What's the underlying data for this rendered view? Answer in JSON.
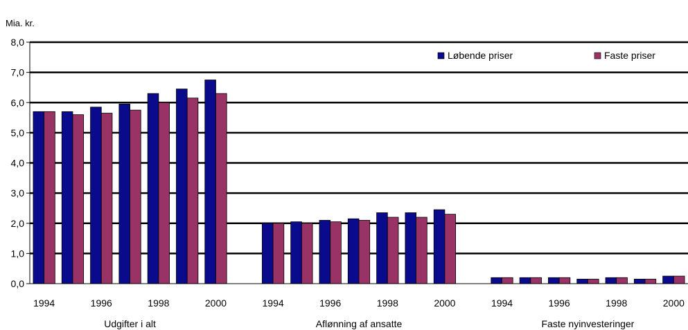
{
  "chart_data": {
    "type": "bar",
    "ylabel": "Mia. kr.",
    "ylim": [
      0,
      8
    ],
    "yticks": [
      "0,0",
      "1,0",
      "2,0",
      "3,0",
      "4,0",
      "5,0",
      "6,0",
      "7,0",
      "8,0"
    ],
    "grid": true,
    "legend_position": "top-right",
    "series_colors": [
      "#0a0a8c",
      "#993366"
    ],
    "legend": [
      "Løbende priser",
      "Faste priser"
    ],
    "groups": [
      {
        "label": "Udgifter i alt",
        "years": [
          "1994",
          "1995",
          "1996",
          "1997",
          "1998",
          "1999",
          "2000"
        ],
        "tick_labels": [
          "1994",
          "",
          "1996",
          "",
          "1998",
          "",
          "2000"
        ],
        "series": [
          {
            "name": "Løbende priser",
            "values": [
              5.7,
              5.7,
              5.85,
              5.95,
              6.3,
              6.45,
              6.75
            ]
          },
          {
            "name": "Faste priser",
            "values": [
              5.7,
              5.6,
              5.65,
              5.75,
              6.0,
              6.15,
              6.3
            ]
          }
        ]
      },
      {
        "label": "Aflønning af ansatte",
        "years": [
          "1994",
          "1995",
          "1996",
          "1997",
          "1998",
          "1999",
          "2000"
        ],
        "tick_labels": [
          "1994",
          "",
          "1996",
          "",
          "1998",
          "",
          "2000"
        ],
        "series": [
          {
            "name": "Løbende priser",
            "values": [
              2.0,
              2.05,
              2.1,
              2.15,
              2.35,
              2.35,
              2.45
            ]
          },
          {
            "name": "Faste priser",
            "values": [
              2.0,
              2.0,
              2.05,
              2.1,
              2.2,
              2.2,
              2.3
            ]
          }
        ]
      },
      {
        "label": "Faste nyinvesteringer",
        "years": [
          "1994",
          "1995",
          "1996",
          "1997",
          "1998",
          "1999",
          "2000"
        ],
        "tick_labels": [
          "1994",
          "",
          "1996",
          "",
          "1998",
          "",
          "2000"
        ],
        "series": [
          {
            "name": "Løbende priser",
            "values": [
              0.2,
              0.2,
              0.2,
              0.15,
              0.2,
              0.15,
              0.25
            ]
          },
          {
            "name": "Faste priser",
            "values": [
              0.2,
              0.2,
              0.2,
              0.15,
              0.2,
              0.15,
              0.25
            ]
          }
        ]
      }
    ]
  }
}
